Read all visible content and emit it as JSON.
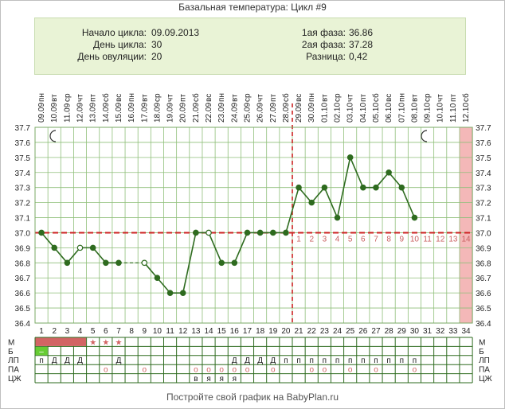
{
  "title": "Базальная температура: Цикл #9",
  "info": {
    "cycle_start_label": "Начало цикла:",
    "cycle_start_value": "09.09.2013",
    "cycle_day_label": "День цикла:",
    "cycle_day_value": "30",
    "ovulation_day_label": "День овуляции:",
    "ovulation_day_value": "20",
    "phase1_label": "1ая фаза:",
    "phase1_value": "36.86",
    "phase2_label": "2ая фаза:",
    "phase2_value": "37.28",
    "difference_label": "Разница:",
    "difference_value": "0,42"
  },
  "footer": "Постройте свой график на BabyPlan.ru",
  "colors": {
    "line": "#2e6b1f",
    "grid": "#8fbf7a",
    "coverline": "#cc2222",
    "marker_fill": "#2e6b1f",
    "open_marker_fill": "#ffffff",
    "menstruation": "#d26464",
    "highlight_column": "#f4b8b8",
    "lp_green": "#66cc33"
  },
  "chart_data": {
    "type": "line",
    "ylim": [
      36.4,
      37.7
    ],
    "y_ticks": [
      "36.4",
      "36.5",
      "36.6",
      "36.7",
      "36.8",
      "36.9",
      "37.0",
      "37.1",
      "37.2",
      "37.3",
      "37.4",
      "37.5",
      "37.6",
      "37.7"
    ],
    "coverline": 37.0,
    "ovulation_day": 20,
    "highlight_day": 34,
    "day_numbers": [
      "1",
      "2",
      "3",
      "4",
      "5",
      "6",
      "7",
      "8",
      "9",
      "10",
      "11",
      "12",
      "13",
      "14",
      "15",
      "16",
      "17",
      "18",
      "19",
      "20",
      "21",
      "22",
      "23",
      "24",
      "25",
      "26",
      "27",
      "28",
      "29",
      "30",
      "31",
      "32",
      "33",
      "34"
    ],
    "weekdays": [
      "пн",
      "вт",
      "ср",
      "чт",
      "пт",
      "сб",
      "вс",
      "пн",
      "вт",
      "ср",
      "чт",
      "пт",
      "сб",
      "вс",
      "пн",
      "вт",
      "ср",
      "чт",
      "пт",
      "сб",
      "вс",
      "пн",
      "вт",
      "ср",
      "чт",
      "пт",
      "сб",
      "вс",
      "пн",
      "вт",
      "ср",
      "чт",
      "пт",
      "сб"
    ],
    "dates": [
      "09.09",
      "10.09",
      "11.09",
      "12.09",
      "13.09",
      "14.09",
      "15.09",
      "16.09",
      "17.09",
      "18.09",
      "19.09",
      "20.09",
      "21.09",
      "22.09",
      "23.09",
      "24.09",
      "25.09",
      "26.09",
      "27.09",
      "28.09",
      "29.09",
      "30.09",
      "01.10",
      "02.10",
      "03.10",
      "04.10",
      "05.10",
      "06.10",
      "07.10",
      "08.10",
      "09.10",
      "10.10",
      "11.10",
      "12.10"
    ],
    "luteal_labels": [
      "1",
      "2",
      "3",
      "4",
      "5",
      "6",
      "7",
      "8",
      "9",
      "10",
      "11",
      "12",
      "13",
      "14"
    ],
    "series": [
      {
        "values": [
          37.0,
          36.9,
          36.8,
          36.9,
          36.9,
          36.8,
          36.8,
          null,
          36.8,
          36.7,
          36.6,
          36.6,
          37.0,
          37.0,
          36.8,
          36.8,
          37.0,
          37.0,
          37.0,
          37.0,
          37.3,
          37.2,
          37.3,
          37.1,
          37.5,
          37.3,
          37.3,
          37.4,
          37.3,
          37.1,
          null,
          null,
          null,
          null
        ],
        "open_markers": [
          4,
          9,
          14
        ]
      }
    ],
    "rows": {
      "labels": [
        "М",
        "Б",
        "ЛП",
        "ПА",
        "ЦЖ"
      ],
      "M_bar_days": [
        1,
        2,
        3,
        4
      ],
      "M_star_days": [
        5,
        6,
        7
      ],
      "B_green_days": [
        1
      ],
      "B_text": "–",
      "LP": {
        "1": "п",
        "2": "Д",
        "3": "Д",
        "4": "Д",
        "7": "Д",
        "16": "Д",
        "17": "Д",
        "18": "Д",
        "19": "Д",
        "20": "п",
        "21": "п",
        "22": "п",
        "23": "п",
        "24": "п",
        "25": "п",
        "26": "п",
        "27": "п",
        "28": "п",
        "29": "п",
        "30": "п"
      },
      "PA": {
        "6": "o",
        "9": "o",
        "13": "o",
        "14": "o",
        "15": "o",
        "16": "o",
        "17": "o",
        "19": "o",
        "22": "o",
        "23": "o",
        "25": "o",
        "27": "o",
        "30": "o"
      },
      "CZh": {
        "13": "в",
        "14": "я",
        "15": "я",
        "16": "я"
      }
    }
  }
}
